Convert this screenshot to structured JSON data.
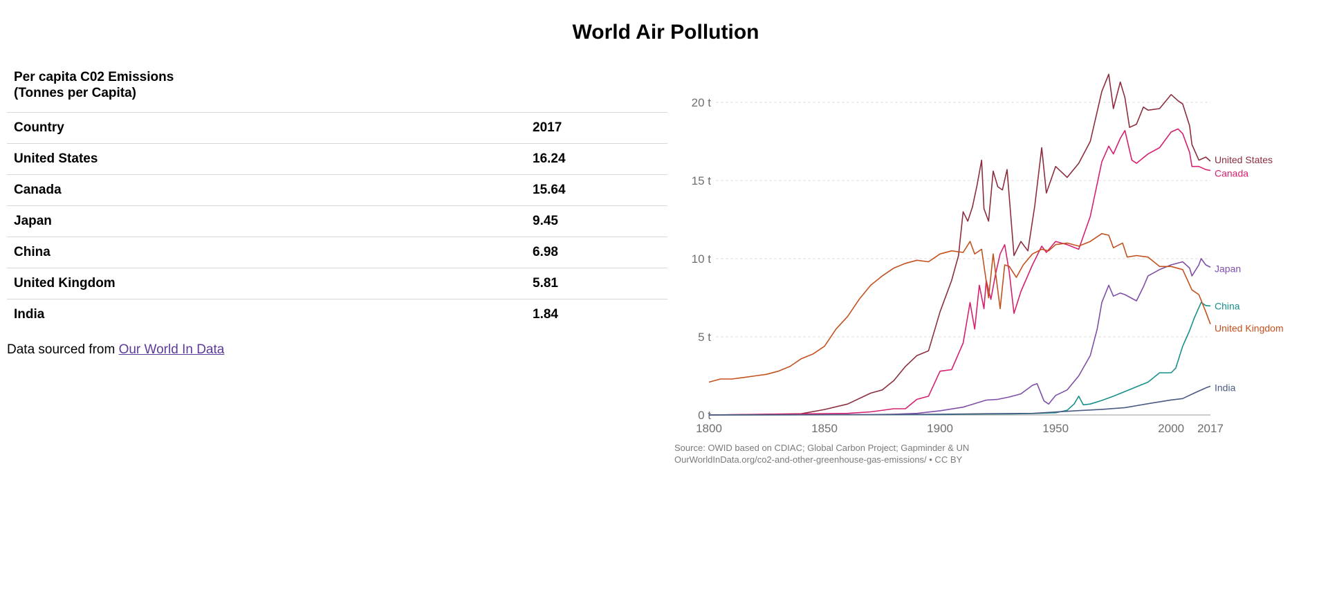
{
  "page": {
    "title": "World Air Pollution"
  },
  "table": {
    "caption_line1": "Per capita C02 Emissions",
    "caption_line2": "(Tonnes per Capita)",
    "header": {
      "country": "Country",
      "year": "2017"
    },
    "rows": [
      {
        "country": "United States",
        "value": "16.24"
      },
      {
        "country": "Canada",
        "value": "15.64"
      },
      {
        "country": "Japan",
        "value": "9.45"
      },
      {
        "country": "China",
        "value": "6.98"
      },
      {
        "country": "United Kingdom",
        "value": "5.81"
      },
      {
        "country": "India",
        "value": "1.84"
      }
    ]
  },
  "source": {
    "prefix": "Data sourced from",
    "link_text": "Our World In Data"
  },
  "chart_data": {
    "type": "line",
    "x_ticks": [
      "1800",
      "1850",
      "1900",
      "1950",
      "2000",
      "2017"
    ],
    "y_ticks": [
      "0 t",
      "5 t",
      "10 t",
      "15 t",
      "20 t"
    ],
    "xlim": [
      1800,
      2017
    ],
    "ylim": [
      0,
      22
    ],
    "grid": "horizontal-dashed",
    "source_line1": "Source: OWID based on CDIAC; Global Carbon Project; Gapminder & UN",
    "source_line2": "OurWorldInData.org/co2-and-other-greenhouse-gas-emissions/ • CC BY",
    "series": [
      {
        "name": "United States",
        "color": "#8c2d3e",
        "points": [
          [
            1800,
            0.0
          ],
          [
            1840,
            0.08
          ],
          [
            1850,
            0.35
          ],
          [
            1860,
            0.7
          ],
          [
            1870,
            1.4
          ],
          [
            1875,
            1.6
          ],
          [
            1880,
            2.2
          ],
          [
            1885,
            3.1
          ],
          [
            1890,
            3.8
          ],
          [
            1895,
            4.1
          ],
          [
            1900,
            6.6
          ],
          [
            1905,
            8.6
          ],
          [
            1908,
            10.2
          ],
          [
            1910,
            13.0
          ],
          [
            1912,
            12.4
          ],
          [
            1914,
            13.3
          ],
          [
            1916,
            14.7
          ],
          [
            1918,
            16.3
          ],
          [
            1919,
            13.2
          ],
          [
            1921,
            12.4
          ],
          [
            1923,
            15.6
          ],
          [
            1925,
            14.6
          ],
          [
            1927,
            14.4
          ],
          [
            1929,
            15.7
          ],
          [
            1932,
            10.2
          ],
          [
            1935,
            11.1
          ],
          [
            1938,
            10.5
          ],
          [
            1941,
            13.4
          ],
          [
            1944,
            17.1
          ],
          [
            1946,
            14.2
          ],
          [
            1950,
            15.9
          ],
          [
            1955,
            15.2
          ],
          [
            1960,
            16.1
          ],
          [
            1965,
            17.5
          ],
          [
            1970,
            20.7
          ],
          [
            1973,
            21.8
          ],
          [
            1975,
            19.6
          ],
          [
            1978,
            21.3
          ],
          [
            1980,
            20.3
          ],
          [
            1982,
            18.4
          ],
          [
            1985,
            18.6
          ],
          [
            1988,
            19.7
          ],
          [
            1990,
            19.5
          ],
          [
            1995,
            19.6
          ],
          [
            2000,
            20.5
          ],
          [
            2003,
            20.1
          ],
          [
            2005,
            19.9
          ],
          [
            2008,
            18.5
          ],
          [
            2009,
            17.3
          ],
          [
            2012,
            16.3
          ],
          [
            2015,
            16.5
          ],
          [
            2017,
            16.24
          ]
        ]
      },
      {
        "name": "Canada",
        "color": "#d4206f",
        "points": [
          [
            1800,
            0.0
          ],
          [
            1860,
            0.1
          ],
          [
            1870,
            0.2
          ],
          [
            1880,
            0.4
          ],
          [
            1885,
            0.4
          ],
          [
            1890,
            1.0
          ],
          [
            1895,
            1.2
          ],
          [
            1900,
            2.8
          ],
          [
            1905,
            2.9
          ],
          [
            1910,
            4.6
          ],
          [
            1913,
            7.2
          ],
          [
            1915,
            5.5
          ],
          [
            1917,
            8.3
          ],
          [
            1919,
            6.8
          ],
          [
            1920,
            8.6
          ],
          [
            1922,
            7.4
          ],
          [
            1924,
            9.0
          ],
          [
            1926,
            10.3
          ],
          [
            1928,
            10.9
          ],
          [
            1930,
            9.1
          ],
          [
            1932,
            6.5
          ],
          [
            1935,
            7.9
          ],
          [
            1940,
            9.6
          ],
          [
            1944,
            10.8
          ],
          [
            1946,
            10.4
          ],
          [
            1950,
            11.1
          ],
          [
            1955,
            10.9
          ],
          [
            1960,
            10.6
          ],
          [
            1965,
            12.7
          ],
          [
            1970,
            16.2
          ],
          [
            1973,
            17.2
          ],
          [
            1975,
            16.7
          ],
          [
            1978,
            17.7
          ],
          [
            1980,
            18.2
          ],
          [
            1983,
            16.3
          ],
          [
            1985,
            16.1
          ],
          [
            1990,
            16.7
          ],
          [
            1995,
            17.1
          ],
          [
            2000,
            18.1
          ],
          [
            2003,
            18.3
          ],
          [
            2005,
            18.0
          ],
          [
            2008,
            16.8
          ],
          [
            2009,
            15.9
          ],
          [
            2012,
            15.9
          ],
          [
            2015,
            15.7
          ],
          [
            2017,
            15.64
          ]
        ]
      },
      {
        "name": "Japan",
        "color": "#7f4ea8",
        "points": [
          [
            1800,
            0.0
          ],
          [
            1870,
            0.02
          ],
          [
            1880,
            0.05
          ],
          [
            1890,
            0.1
          ],
          [
            1900,
            0.27
          ],
          [
            1910,
            0.5
          ],
          [
            1920,
            0.95
          ],
          [
            1925,
            1.0
          ],
          [
            1930,
            1.15
          ],
          [
            1935,
            1.35
          ],
          [
            1940,
            1.9
          ],
          [
            1942,
            2.0
          ],
          [
            1945,
            0.9
          ],
          [
            1947,
            0.7
          ],
          [
            1950,
            1.25
          ],
          [
            1955,
            1.6
          ],
          [
            1960,
            2.5
          ],
          [
            1965,
            3.8
          ],
          [
            1968,
            5.5
          ],
          [
            1970,
            7.2
          ],
          [
            1973,
            8.3
          ],
          [
            1975,
            7.6
          ],
          [
            1978,
            7.8
          ],
          [
            1980,
            7.7
          ],
          [
            1985,
            7.3
          ],
          [
            1988,
            8.2
          ],
          [
            1990,
            8.9
          ],
          [
            1995,
            9.3
          ],
          [
            2000,
            9.6
          ],
          [
            2005,
            9.8
          ],
          [
            2008,
            9.4
          ],
          [
            2009,
            8.9
          ],
          [
            2012,
            9.6
          ],
          [
            2013,
            10.0
          ],
          [
            2015,
            9.6
          ],
          [
            2017,
            9.45
          ]
        ]
      },
      {
        "name": "China",
        "color": "#178f8a",
        "points": [
          [
            1800,
            0.0
          ],
          [
            1900,
            0.02
          ],
          [
            1910,
            0.05
          ],
          [
            1920,
            0.06
          ],
          [
            1930,
            0.07
          ],
          [
            1940,
            0.09
          ],
          [
            1950,
            0.14
          ],
          [
            1955,
            0.3
          ],
          [
            1958,
            0.7
          ],
          [
            1960,
            1.2
          ],
          [
            1962,
            0.65
          ],
          [
            1965,
            0.7
          ],
          [
            1970,
            0.93
          ],
          [
            1975,
            1.2
          ],
          [
            1980,
            1.5
          ],
          [
            1985,
            1.8
          ],
          [
            1990,
            2.1
          ],
          [
            1995,
            2.7
          ],
          [
            2000,
            2.7
          ],
          [
            2002,
            3.0
          ],
          [
            2005,
            4.4
          ],
          [
            2008,
            5.4
          ],
          [
            2010,
            6.2
          ],
          [
            2013,
            7.2
          ],
          [
            2015,
            7.0
          ],
          [
            2017,
            6.98
          ]
        ]
      },
      {
        "name": "United Kingdom",
        "color": "#c3511d",
        "points": [
          [
            1800,
            2.1
          ],
          [
            1805,
            2.3
          ],
          [
            1810,
            2.3
          ],
          [
            1815,
            2.4
          ],
          [
            1820,
            2.5
          ],
          [
            1825,
            2.6
          ],
          [
            1830,
            2.8
          ],
          [
            1835,
            3.1
          ],
          [
            1840,
            3.6
          ],
          [
            1845,
            3.9
          ],
          [
            1850,
            4.4
          ],
          [
            1855,
            5.5
          ],
          [
            1860,
            6.3
          ],
          [
            1865,
            7.4
          ],
          [
            1870,
            8.3
          ],
          [
            1875,
            8.9
          ],
          [
            1880,
            9.4
          ],
          [
            1885,
            9.7
          ],
          [
            1890,
            9.9
          ],
          [
            1895,
            9.8
          ],
          [
            1900,
            10.3
          ],
          [
            1905,
            10.5
          ],
          [
            1910,
            10.4
          ],
          [
            1913,
            11.1
          ],
          [
            1915,
            10.3
          ],
          [
            1918,
            10.6
          ],
          [
            1921,
            7.5
          ],
          [
            1923,
            10.3
          ],
          [
            1926,
            6.8
          ],
          [
            1928,
            9.6
          ],
          [
            1930,
            9.5
          ],
          [
            1933,
            8.8
          ],
          [
            1936,
            9.6
          ],
          [
            1940,
            10.3
          ],
          [
            1944,
            10.6
          ],
          [
            1947,
            10.5
          ],
          [
            1950,
            10.9
          ],
          [
            1955,
            11.0
          ],
          [
            1960,
            10.8
          ],
          [
            1965,
            11.1
          ],
          [
            1970,
            11.6
          ],
          [
            1973,
            11.5
          ],
          [
            1975,
            10.7
          ],
          [
            1979,
            11.0
          ],
          [
            1981,
            10.1
          ],
          [
            1985,
            10.2
          ],
          [
            1990,
            10.1
          ],
          [
            1995,
            9.5
          ],
          [
            2000,
            9.5
          ],
          [
            2005,
            9.3
          ],
          [
            2009,
            8.0
          ],
          [
            2012,
            7.7
          ],
          [
            2015,
            6.6
          ],
          [
            2017,
            5.81
          ]
        ]
      },
      {
        "name": "India",
        "color": "#4a5a82",
        "points": [
          [
            1800,
            0.0
          ],
          [
            1880,
            0.02
          ],
          [
            1900,
            0.05
          ],
          [
            1920,
            0.08
          ],
          [
            1940,
            0.1
          ],
          [
            1950,
            0.19
          ],
          [
            1960,
            0.28
          ],
          [
            1970,
            0.36
          ],
          [
            1980,
            0.47
          ],
          [
            1990,
            0.72
          ],
          [
            2000,
            0.96
          ],
          [
            2005,
            1.05
          ],
          [
            2010,
            1.4
          ],
          [
            2015,
            1.73
          ],
          [
            2017,
            1.84
          ]
        ]
      }
    ]
  }
}
